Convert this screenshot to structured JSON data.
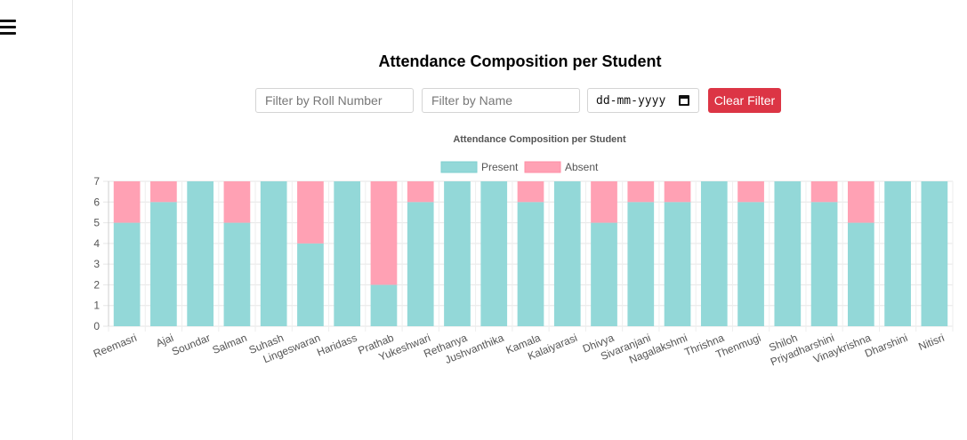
{
  "page": {
    "title": "Attendance Composition per Student"
  },
  "filters": {
    "roll_placeholder": "Filter by Roll Number",
    "name_placeholder": "Filter by Name",
    "date_placeholder": "dd-mm-yyyy",
    "clear_label": "Clear Filter"
  },
  "icons": {
    "menu": "hamburger-icon",
    "date": "calendar-icon"
  },
  "colors": {
    "present": "#93d8d8",
    "absent": "#ffa1b4",
    "clear_button": "#dc3545"
  },
  "chart_data": {
    "type": "bar",
    "stacked": true,
    "title": "Attendance Composition per Student",
    "categories": [
      "Reemasri",
      "Ajai",
      "Soundar",
      "Salman",
      "Suhash",
      "Lingeswaran",
      "Haridass",
      "Prathab",
      "Yukeshwari",
      "Rethanya",
      "Jushvanthika",
      "Kamala",
      "Kalaiyarasi",
      "Dhivya",
      "Sivaranjani",
      "Nagalakshmi",
      "Thrishna",
      "Thenmugi",
      "Shiloh",
      "Priyadharshini",
      "Vinaykrishna",
      "Dharshini",
      "Nitisri"
    ],
    "series": [
      {
        "name": "Present",
        "values": [
          5,
          6,
          7,
          5,
          7,
          4,
          7,
          2,
          6,
          7,
          7,
          6,
          7,
          5,
          6,
          6,
          7,
          6,
          7,
          6,
          5,
          7,
          7
        ]
      },
      {
        "name": "Absent",
        "values": [
          2,
          1,
          0,
          2,
          0,
          3,
          0,
          5,
          1,
          0,
          0,
          1,
          0,
          2,
          1,
          1,
          0,
          1,
          0,
          1,
          2,
          0,
          0
        ]
      }
    ],
    "ylim": [
      0,
      7
    ],
    "yticks": [
      0,
      1,
      2,
      3,
      4,
      5,
      6,
      7
    ],
    "legend_position": "top",
    "grid": true
  }
}
